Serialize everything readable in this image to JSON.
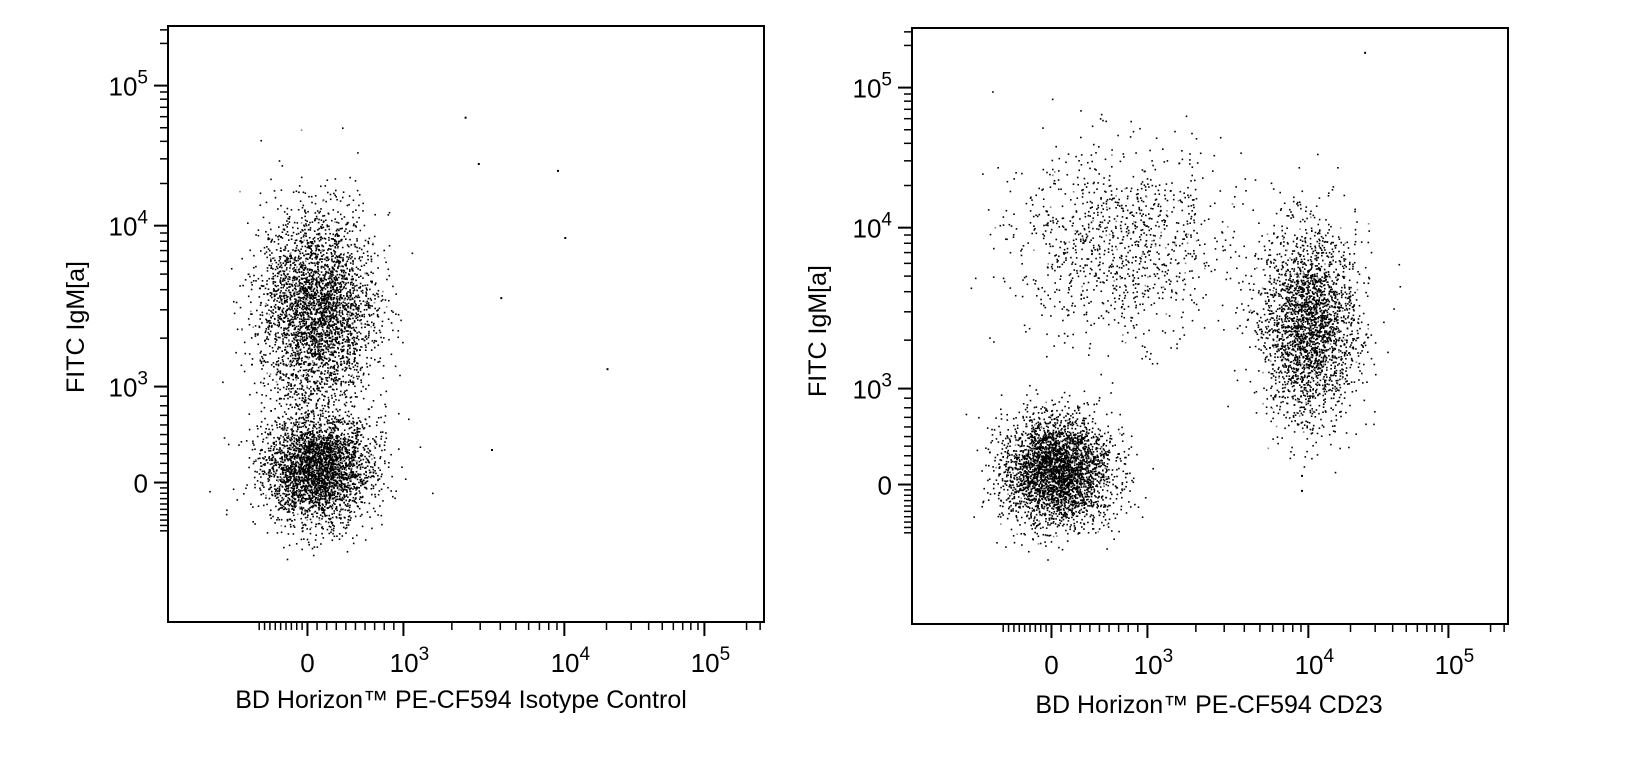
{
  "chart_data": [
    {
      "type": "scatter",
      "title": "",
      "xlabel": "BD Horizon™ PE-CF594 Isotype Control",
      "ylabel": "FITC IgM[a]",
      "x_scale": "biexponential",
      "y_scale": "biexponential",
      "x_ticks": [
        "0",
        "10^3",
        "10^4",
        "10^5"
      ],
      "y_ticks": [
        "0",
        "10^3",
        "10^4",
        "10^5"
      ],
      "xlim": [
        -1000,
        262143
      ],
      "ylim": [
        -1000,
        262143
      ],
      "populations": [
        {
          "description": "IgM-low cluster",
          "x_center": 100,
          "y_center": 150,
          "approx_events": 3200
        },
        {
          "description": "IgM-high cluster",
          "x_center": 100,
          "y_center": 3000,
          "approx_events": 3400
        }
      ],
      "outlier_points": [
        {
          "x": 2400,
          "y": 60000
        },
        {
          "x": 9000,
          "y": 25000
        },
        {
          "x": 10000,
          "y": 8500
        },
        {
          "x": 4000,
          "y": 3600
        },
        {
          "x": 20000,
          "y": 1300
        },
        {
          "x": 3500,
          "y": 350
        },
        {
          "x": 2900,
          "y": 28000
        }
      ]
    },
    {
      "type": "scatter",
      "title": "",
      "xlabel": "BD Horizon™ PE-CF594 CD23",
      "ylabel": "FITC IgM[a]",
      "x_scale": "biexponential",
      "y_scale": "biexponential",
      "x_ticks": [
        "0",
        "10^3",
        "10^4",
        "10^5"
      ],
      "y_ticks": [
        "0",
        "10^3",
        "10^4",
        "10^5"
      ],
      "xlim": [
        -1000,
        262143
      ],
      "ylim": [
        -1000,
        262143
      ],
      "populations": [
        {
          "description": "CD23- IgM-low cluster",
          "x_center": 50,
          "y_center": 150,
          "approx_events": 3400
        },
        {
          "description": "CD23+ IgM+ cluster",
          "x_center": 10000,
          "y_center": 2500,
          "approx_events": 2600
        },
        {
          "description": "CD23- IgM-high diffuse",
          "x_center": 700,
          "y_center": 8000,
          "approx_events": 1100
        }
      ],
      "outlier_points": [
        {
          "x": 25000,
          "y": 180000
        },
        {
          "x": 9000,
          "y": 100
        },
        {
          "x": 9000,
          "y": -100
        }
      ]
    }
  ]
}
